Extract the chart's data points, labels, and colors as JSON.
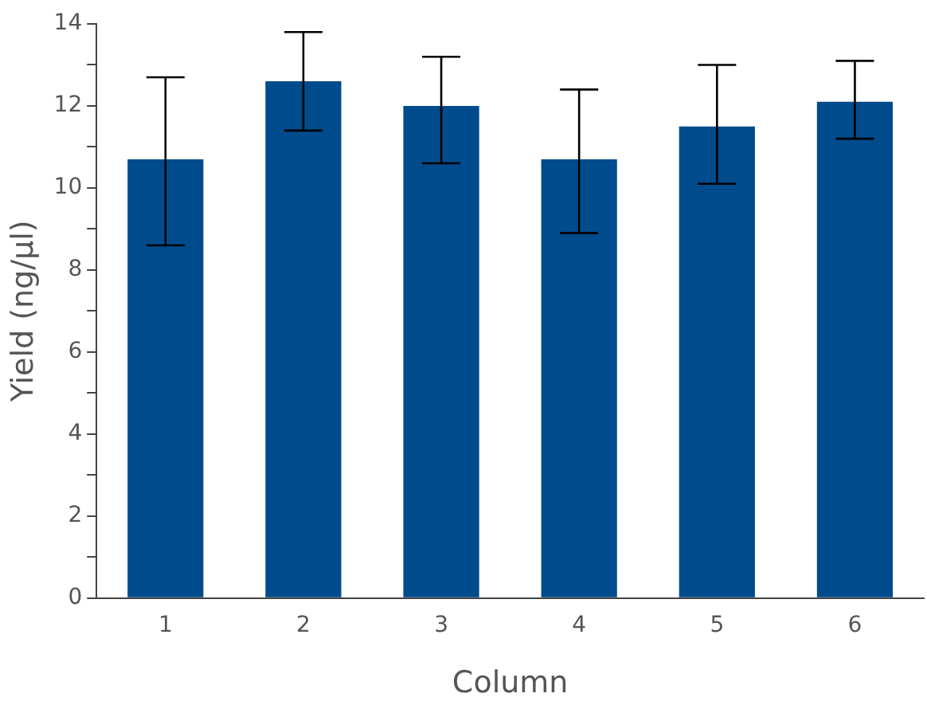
{
  "chart_data": {
    "type": "bar",
    "xlabel": "Column",
    "ylabel": "Yield (ng/µl)",
    "categories": [
      "1",
      "2",
      "3",
      "4",
      "5",
      "6"
    ],
    "values": [
      10.7,
      12.6,
      12.0,
      10.7,
      11.5,
      12.1
    ],
    "errors": [
      [
        8.6,
        12.7
      ],
      [
        11.4,
        13.8
      ],
      [
        10.6,
        13.2
      ],
      [
        8.9,
        12.4
      ],
      [
        10.1,
        13.0
      ],
      [
        11.2,
        13.1
      ]
    ],
    "color": "#004b8c",
    "ylim": [
      0,
      14
    ],
    "yticks": [
      0,
      {
        "value": 1,
        "label": null
      },
      2,
      {
        "value": 3,
        "label": null
      },
      4,
      {
        "value": 5,
        "label": null
      },
      6,
      {
        "value": 7,
        "label": null
      },
      8,
      {
        "value": 9,
        "label": null
      },
      10,
      {
        "value": 11,
        "label": null
      },
      12,
      {
        "value": 13,
        "label": null
      },
      14
    ],
    "grid": false,
    "legend": false
  }
}
